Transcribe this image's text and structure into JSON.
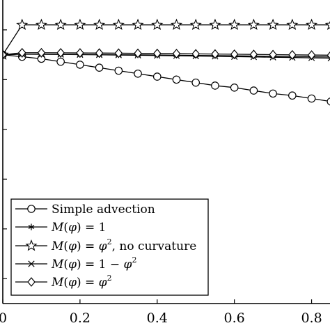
{
  "chart_data": {
    "type": "line",
    "title": "",
    "xlabel": "",
    "ylabel": "",
    "xlim": [
      0,
      0.9
    ],
    "ylim": [
      -2.0,
      1.05
    ],
    "grid": false,
    "legend_position": "bottom-left",
    "x_ticks": [
      0,
      0.2,
      0.4,
      0.6,
      0.8
    ],
    "x_tick_labels": [
      "0",
      "0.2",
      "0.4",
      "0.6",
      "0.8"
    ],
    "y_ticks": [
      0.75,
      0.25,
      -0.25,
      -0.75,
      -1.25,
      -1.75
    ],
    "series": [
      {
        "name": "Simple advection",
        "marker": "circle",
        "x": [
          0,
          0.05,
          0.1,
          0.15,
          0.2,
          0.25,
          0.3,
          0.35,
          0.4,
          0.45,
          0.5,
          0.55,
          0.6,
          0.65,
          0.7,
          0.75,
          0.8,
          0.85
        ],
        "y": [
          0.5,
          0.48,
          0.46,
          0.43,
          0.4,
          0.37,
          0.34,
          0.31,
          0.28,
          0.25,
          0.22,
          0.19,
          0.17,
          0.14,
          0.11,
          0.09,
          0.06,
          0.03
        ]
      },
      {
        "name": "M(φ) = 1",
        "label_parts": [
          "M",
          "(",
          "φ",
          ") = 1",
          ""
        ],
        "marker": "asterisk",
        "x": [
          0,
          0.05,
          0.1,
          0.15,
          0.2,
          0.25,
          0.3,
          0.35,
          0.4,
          0.45,
          0.5,
          0.55,
          0.6,
          0.65,
          0.7,
          0.75,
          0.8,
          0.85
        ],
        "y": [
          0.5,
          0.505,
          0.505,
          0.504,
          0.503,
          0.502,
          0.5,
          0.499,
          0.497,
          0.495,
          0.493,
          0.491,
          0.489,
          0.487,
          0.485,
          0.483,
          0.48,
          0.478
        ]
      },
      {
        "name": "M(φ) = φ², no curvature",
        "label_parts": [
          "M",
          "(",
          "φ",
          ") = ",
          "φ",
          "2",
          ", no curvature"
        ],
        "marker": "star",
        "x": [
          0,
          0.05,
          0.1,
          0.15,
          0.2,
          0.25,
          0.3,
          0.35,
          0.4,
          0.45,
          0.5,
          0.55,
          0.6,
          0.65,
          0.7,
          0.75,
          0.8,
          0.85
        ],
        "y": [
          0.5,
          0.8,
          0.8,
          0.8,
          0.8,
          0.8,
          0.8,
          0.8,
          0.8,
          0.8,
          0.8,
          0.8,
          0.8,
          0.8,
          0.8,
          0.8,
          0.8,
          0.8
        ]
      },
      {
        "name": "M(φ) = 1 − φ²",
        "label_parts": [
          "M",
          "(",
          "φ",
          ") = 1 − ",
          "φ",
          "2",
          ""
        ],
        "marker": "x",
        "x": [
          0,
          0.05,
          0.1,
          0.15,
          0.2,
          0.25,
          0.3,
          0.35,
          0.4,
          0.45,
          0.5,
          0.55,
          0.6,
          0.65,
          0.7,
          0.75,
          0.8,
          0.85
        ],
        "y": [
          0.5,
          0.505,
          0.504,
          0.503,
          0.501,
          0.499,
          0.497,
          0.495,
          0.492,
          0.49,
          0.487,
          0.484,
          0.481,
          0.478,
          0.475,
          0.472,
          0.469,
          0.466
        ]
      },
      {
        "name": "M(φ) = φ²",
        "label_parts": [
          "M",
          "(",
          "φ",
          ") = ",
          "φ",
          "2",
          ""
        ],
        "marker": "diamond",
        "x": [
          0,
          0.05,
          0.1,
          0.15,
          0.2,
          0.25,
          0.3,
          0.35,
          0.4,
          0.45,
          0.5,
          0.55,
          0.6,
          0.65,
          0.7,
          0.75,
          0.8,
          0.85
        ],
        "y": [
          0.5,
          0.52,
          0.52,
          0.519,
          0.518,
          0.517,
          0.516,
          0.514,
          0.513,
          0.511,
          0.509,
          0.507,
          0.505,
          0.503,
          0.501,
          0.499,
          0.497,
          0.495
        ]
      }
    ]
  }
}
